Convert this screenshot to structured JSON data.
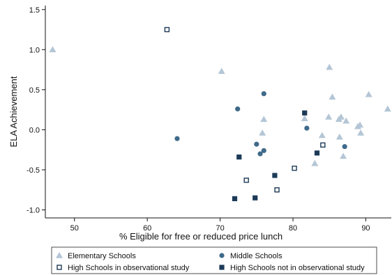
{
  "chart_data": {
    "type": "scatter",
    "xlabel": "% Eligible for free or reduced price lunch",
    "ylabel": "ELA Achievement",
    "xlim": [
      46,
      93.5
    ],
    "ylim": [
      -1.1,
      1.55
    ],
    "x_ticks": [
      50,
      60,
      70,
      80,
      90
    ],
    "y_ticks": [
      1.5,
      1.0,
      0.5,
      0.0,
      -0.5,
      -1.0
    ],
    "x_tick_labels": [
      "50",
      "60",
      "70",
      "80",
      "90"
    ],
    "y_tick_labels": [
      "1.5",
      "1.0",
      "0.5",
      "0.0",
      "-0.5",
      "-1.0"
    ],
    "grid": false,
    "legend_position": "bottom",
    "series": [
      {
        "name": "Elementary Schools",
        "marker": "triangle",
        "color": "#b4c6d6",
        "points": [
          [
            47.0,
            1.0
          ],
          [
            70.2,
            0.73
          ],
          [
            76.0,
            0.13
          ],
          [
            75.8,
            -0.04
          ],
          [
            81.6,
            0.14
          ],
          [
            83.0,
            -0.42
          ],
          [
            84.0,
            -0.07
          ],
          [
            84.9,
            0.16
          ],
          [
            85.0,
            0.78
          ],
          [
            85.4,
            0.41
          ],
          [
            86.3,
            0.13
          ],
          [
            86.4,
            -0.09
          ],
          [
            86.6,
            0.16
          ],
          [
            86.9,
            -0.33
          ],
          [
            87.3,
            0.11
          ],
          [
            88.9,
            0.04
          ],
          [
            89.2,
            0.06
          ],
          [
            89.3,
            -0.04
          ],
          [
            90.4,
            0.44
          ],
          [
            93.0,
            0.26
          ]
        ]
      },
      {
        "name": "Middle Schools",
        "marker": "circle",
        "color": "#3f6a8a",
        "points": [
          [
            64.1,
            -0.11
          ],
          [
            72.4,
            0.26
          ],
          [
            76.0,
            0.45
          ],
          [
            75.0,
            -0.18
          ],
          [
            75.5,
            -0.3
          ],
          [
            76.0,
            -0.26
          ],
          [
            81.9,
            0.02
          ],
          [
            87.1,
            -0.21
          ]
        ]
      },
      {
        "name": "High Schools in observational study",
        "marker": "square-open",
        "color": "#1c3a57",
        "points": [
          [
            62.7,
            1.25
          ],
          [
            73.6,
            -0.63
          ],
          [
            77.8,
            -0.75
          ],
          [
            80.2,
            -0.48
          ],
          [
            84.1,
            -0.19
          ]
        ]
      },
      {
        "name": "High Schools not in observational study",
        "marker": "square",
        "color": "#1c3a57",
        "points": [
          [
            72.0,
            -0.86
          ],
          [
            72.6,
            -0.34
          ],
          [
            74.8,
            -0.85
          ],
          [
            77.5,
            -0.57
          ],
          [
            81.6,
            0.21
          ],
          [
            83.3,
            -0.29
          ]
        ]
      }
    ]
  }
}
